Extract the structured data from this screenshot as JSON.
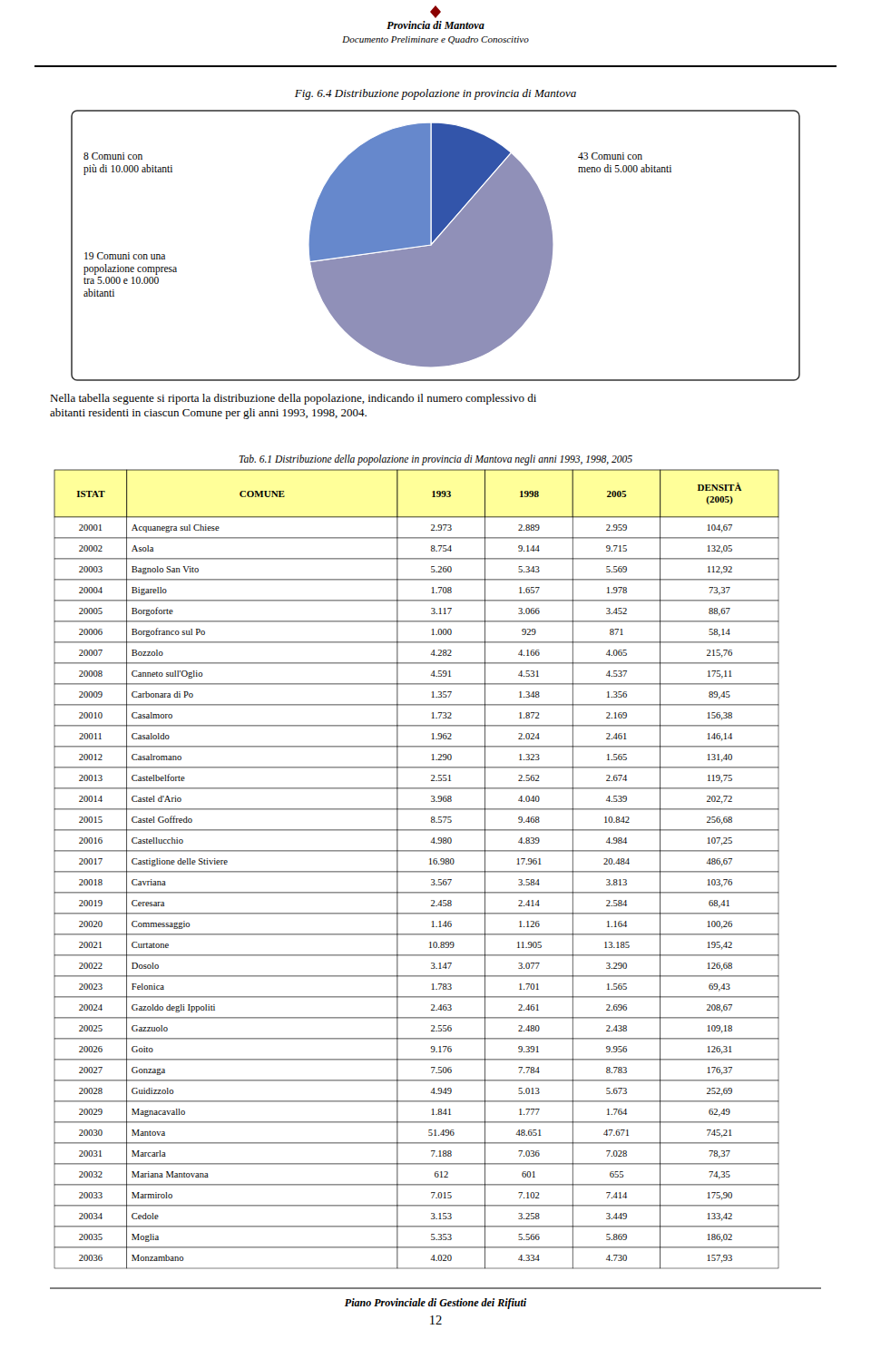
{
  "page": {
    "header_line1": "Provincia di Mantova",
    "header_line2": "Documento Preliminare e Quadro Conoscitivo",
    "body_text": "Nella tabella seguente si riporta la distribuzione della popolazione, indicando il numero complessivo di\nabitanti residenti in ciascun Comune per gli anni 1993, 1998, 2004.",
    "footer_text": "Piano Provinciale di Gestione dei Rifiuti",
    "footer_page": "12"
  },
  "chart_data": [
    {
      "type": "pie",
      "title": "Fig. 6.4 Distribuzione popolazione in provincia di Mantova",
      "categories": [
        "8 Comuni con\npiù di 10.000 abitanti",
        "43 Comuni con\nmeno di 5.000 abitanti",
        "19 Comuni con una\npopolazione compresa\ntra 5.000 e 10.000\nabitanti"
      ],
      "values": [
        11.4,
        61.4,
        27.2
      ],
      "colors": [
        "#3355aa",
        "#9090b8",
        "#6688cc"
      ]
    },
    {
      "type": "table",
      "title": "Tab. 6.1 Distribuzione della popolazione in provincia di Mantova negli anni 1993, 1998, 2005",
      "color": "#ffff99",
      "columns": [
        "ISTAT",
        "COMUNE",
        "1993",
        "1998",
        "2005",
        "DENSITÀ\n(2005)"
      ],
      "rows": [
        [
          "20001",
          "Acquanegra sul Chiese",
          "2.973",
          "2.889",
          "2.959",
          "104,67"
        ],
        [
          "20002",
          "Asola",
          "8.754",
          "9.144",
          "9.715",
          "132,05"
        ],
        [
          "20003",
          "Bagnolo San Vito",
          "5.260",
          "5.343",
          "5.569",
          "112,92"
        ],
        [
          "20004",
          "Bigarello",
          "1.708",
          "1.657",
          "1.978",
          "73,37"
        ],
        [
          "20005",
          "Borgoforte",
          "3.117",
          "3.066",
          "3.452",
          "88,67"
        ],
        [
          "20006",
          "Borgofranco sul Po",
          "1.000",
          "929",
          "871",
          "58,14"
        ],
        [
          "20007",
          "Bozzolo",
          "4.282",
          "4.166",
          "4.065",
          "215,76"
        ],
        [
          "20008",
          "Canneto sull'Oglio",
          "4.591",
          "4.531",
          "4.537",
          "175,11"
        ],
        [
          "20009",
          "Carbonara di Po",
          "1.357",
          "1.348",
          "1.356",
          "89,45"
        ],
        [
          "20010",
          "Casalmoro",
          "1.732",
          "1.872",
          "2.169",
          "156,38"
        ],
        [
          "20011",
          "Casaloldo",
          "1.962",
          "2.024",
          "2.461",
          "146,14"
        ],
        [
          "20012",
          "Casalromano",
          "1.290",
          "1.323",
          "1.565",
          "131,40"
        ],
        [
          "20013",
          "Castelbelforte",
          "2.551",
          "2.562",
          "2.674",
          "119,75"
        ],
        [
          "20014",
          "Castel d'Ario",
          "3.968",
          "4.040",
          "4.539",
          "202,72"
        ],
        [
          "20015",
          "Castel Goffredo",
          "8.575",
          "9.468",
          "10.842",
          "256,68"
        ],
        [
          "20016",
          "Castellucchio",
          "4.980",
          "4.839",
          "4.984",
          "107,25"
        ],
        [
          "20017",
          "Castiglione delle Stiviere",
          "16.980",
          "17.961",
          "20.484",
          "486,67"
        ],
        [
          "20018",
          "Cavriana",
          "3.567",
          "3.584",
          "3.813",
          "103,76"
        ],
        [
          "20019",
          "Ceresara",
          "2.458",
          "2.414",
          "2.584",
          "68,41"
        ],
        [
          "20020",
          "Commessaggio",
          "1.146",
          "1.126",
          "1.164",
          "100,26"
        ],
        [
          "20021",
          "Curtatone",
          "10.899",
          "11.905",
          "13.185",
          "195,42"
        ],
        [
          "20022",
          "Dosolo",
          "3.147",
          "3.077",
          "3.290",
          "126,68"
        ],
        [
          "20023",
          "Felonica",
          "1.783",
          "1.701",
          "1.565",
          "69,43"
        ],
        [
          "20024",
          "Gazoldo degli Ippoliti",
          "2.463",
          "2.461",
          "2.696",
          "208,67"
        ],
        [
          "20025",
          "Gazzuolo",
          "2.556",
          "2.480",
          "2.438",
          "109,18"
        ],
        [
          "20026",
          "Goito",
          "9.176",
          "9.391",
          "9.956",
          "126,31"
        ],
        [
          "20027",
          "Gonzaga",
          "7.506",
          "7.784",
          "8.783",
          "176,37"
        ],
        [
          "20028",
          "Guidizzolo",
          "4.949",
          "5.013",
          "5.673",
          "252,69"
        ],
        [
          "20029",
          "Magnacavallo",
          "1.841",
          "1.777",
          "1.764",
          "62,49"
        ],
        [
          "20030",
          "Mantova",
          "51.496",
          "48.651",
          "47.671",
          "745,21"
        ],
        [
          "20031",
          "Marcarla",
          "7.188",
          "7.036",
          "7.028",
          "78,37"
        ],
        [
          "20032",
          "Mariana Mantovana",
          "612",
          "601",
          "655",
          "74,35"
        ],
        [
          "20033",
          "Marmirolo",
          "7.015",
          "7.102",
          "7.414",
          "175,90"
        ],
        [
          "20034",
          "Cedole",
          "3.153",
          "3.258",
          "3.449",
          "133,42"
        ],
        [
          "20035",
          "Moglia",
          "5.353",
          "5.566",
          "5.869",
          "186,02"
        ],
        [
          "20036",
          "Monzambano",
          "4.020",
          "4.334",
          "4.730",
          "157,93"
        ]
      ]
    }
  ]
}
